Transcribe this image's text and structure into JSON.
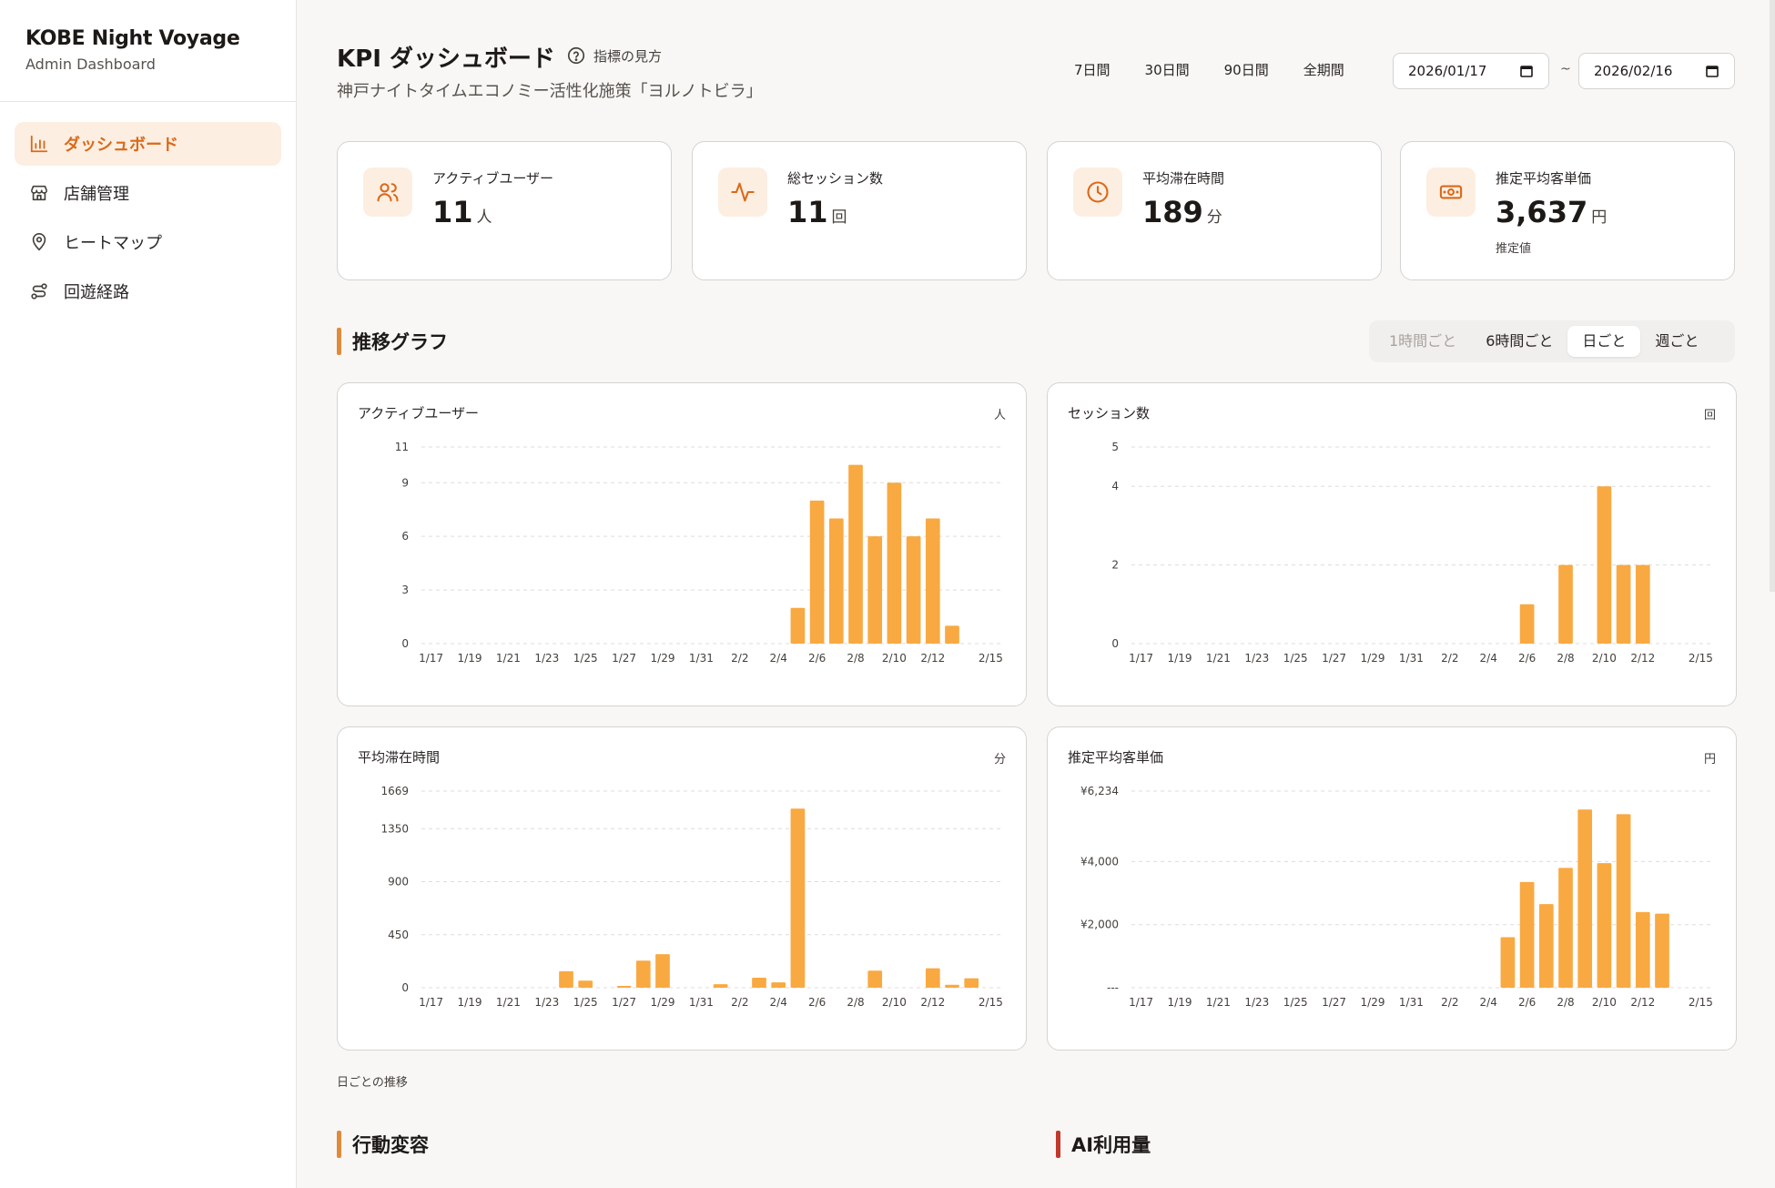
{
  "brand": {
    "title": "KOBE Night Voyage",
    "subtitle": "Admin Dashboard"
  },
  "nav": [
    {
      "label": "ダッシュボード",
      "icon": "bar-chart-icon",
      "active": true
    },
    {
      "label": "店舗管理",
      "icon": "store-icon",
      "active": false
    },
    {
      "label": "ヒートマップ",
      "icon": "map-pin-icon",
      "active": false
    },
    {
      "label": "回遊経路",
      "icon": "route-icon",
      "active": false
    }
  ],
  "header": {
    "title": "KPI ダッシュボード",
    "help_label": "指標の見方",
    "subtitle": "神戸ナイトタイムエコノミー活性化施策「ヨルノトビラ」",
    "range_buttons": [
      "7日間",
      "30日間",
      "90日間",
      "全期間"
    ],
    "date_from": "2026/01/17",
    "date_sep": "~",
    "date_to": "2026/02/16"
  },
  "kpis": [
    {
      "label": "アクティブユーザー",
      "value": "11",
      "unit": "人",
      "note": "",
      "icon": "users-icon"
    },
    {
      "label": "総セッション数",
      "value": "11",
      "unit": "回",
      "note": "",
      "icon": "activity-icon"
    },
    {
      "label": "平均滞在時間",
      "value": "189",
      "unit": "分",
      "note": "",
      "icon": "clock-icon"
    },
    {
      "label": "推定平均客単価",
      "value": "3,637",
      "unit": "円",
      "note": "推定値",
      "icon": "banknote-icon"
    }
  ],
  "trend": {
    "title": "推移グラフ",
    "granularity": [
      {
        "label": "1時間ごと",
        "state": "disabled"
      },
      {
        "label": "6時間ごと",
        "state": "normal"
      },
      {
        "label": "日ごと",
        "state": "selected"
      },
      {
        "label": "週ごと",
        "state": "normal"
      }
    ],
    "footnote": "日ごとの推移"
  },
  "sections": {
    "behavior": "行動変容",
    "ai_usage": "AI利用量"
  },
  "colors": {
    "accent": "#d96a1a",
    "bar": "#f9a941",
    "accent_light": "#fdeee2",
    "section_bar_1": "#e08b3a",
    "section_bar_2": "#c0392b"
  },
  "chart_data": [
    {
      "type": "bar",
      "title": "アクティブユーザー",
      "unit": "人",
      "x_labels": [
        "1/17",
        "1/19",
        "1/21",
        "1/23",
        "1/25",
        "1/27",
        "1/29",
        "1/31",
        "2/2",
        "2/4",
        "2/6",
        "2/8",
        "2/10",
        "2/12",
        "2/15"
      ],
      "x": [
        "1/17",
        "1/18",
        "1/19",
        "1/20",
        "1/21",
        "1/22",
        "1/23",
        "1/24",
        "1/25",
        "1/26",
        "1/27",
        "1/28",
        "1/29",
        "1/30",
        "1/31",
        "2/1",
        "2/2",
        "2/3",
        "2/4",
        "2/5",
        "2/6",
        "2/7",
        "2/8",
        "2/9",
        "2/10",
        "2/11",
        "2/12",
        "2/13",
        "2/14",
        "2/15"
      ],
      "values": [
        0,
        0,
        0,
        0,
        0,
        0,
        0,
        0,
        0,
        0,
        0,
        0,
        0,
        0,
        0,
        0,
        0,
        0,
        0,
        2,
        8,
        7,
        10,
        6,
        9,
        6,
        7,
        1,
        0,
        0
      ],
      "y_ticks": [
        "0",
        "3",
        "6",
        "9",
        "11"
      ],
      "ylim": [
        0,
        11
      ],
      "grid": true
    },
    {
      "type": "bar",
      "title": "セッション数",
      "unit": "回",
      "x_labels": [
        "1/17",
        "1/19",
        "1/21",
        "1/23",
        "1/25",
        "1/27",
        "1/29",
        "1/31",
        "2/2",
        "2/4",
        "2/6",
        "2/8",
        "2/10",
        "2/12",
        "2/15"
      ],
      "x": [
        "1/17",
        "1/18",
        "1/19",
        "1/20",
        "1/21",
        "1/22",
        "1/23",
        "1/24",
        "1/25",
        "1/26",
        "1/27",
        "1/28",
        "1/29",
        "1/30",
        "1/31",
        "2/1",
        "2/2",
        "2/3",
        "2/4",
        "2/5",
        "2/6",
        "2/7",
        "2/8",
        "2/9",
        "2/10",
        "2/11",
        "2/12",
        "2/13",
        "2/14",
        "2/15"
      ],
      "values": [
        0,
        0,
        0,
        0,
        0,
        0,
        0,
        0,
        0,
        0,
        0,
        0,
        0,
        0,
        0,
        0,
        0,
        0,
        0,
        0,
        1,
        0,
        2,
        0,
        4,
        2,
        2,
        0,
        0,
        0
      ],
      "y_ticks": [
        "0",
        "2",
        "4",
        "5"
      ],
      "ylim": [
        0,
        5
      ],
      "grid": true
    },
    {
      "type": "bar",
      "title": "平均滞在時間",
      "unit": "分",
      "x_labels": [
        "1/17",
        "1/19",
        "1/21",
        "1/23",
        "1/25",
        "1/27",
        "1/29",
        "1/31",
        "2/2",
        "2/4",
        "2/6",
        "2/8",
        "2/10",
        "2/12",
        "2/15"
      ],
      "x": [
        "1/17",
        "1/18",
        "1/19",
        "1/20",
        "1/21",
        "1/22",
        "1/23",
        "1/24",
        "1/25",
        "1/26",
        "1/27",
        "1/28",
        "1/29",
        "1/30",
        "1/31",
        "2/1",
        "2/2",
        "2/3",
        "2/4",
        "2/5",
        "2/6",
        "2/7",
        "2/8",
        "2/9",
        "2/10",
        "2/11",
        "2/12",
        "2/13",
        "2/14",
        "2/15"
      ],
      "values": [
        0,
        0,
        0,
        0,
        0,
        0,
        0,
        140,
        60,
        0,
        15,
        230,
        285,
        0,
        0,
        30,
        0,
        85,
        45,
        1520,
        0,
        0,
        0,
        145,
        0,
        0,
        165,
        25,
        80,
        0
      ],
      "y_ticks": [
        "0",
        "450",
        "900",
        "1350",
        "1669"
      ],
      "ylim": [
        0,
        1669
      ],
      "grid": true
    },
    {
      "type": "bar",
      "title": "推定平均客単価",
      "unit": "円",
      "x_labels": [
        "1/17",
        "1/19",
        "1/21",
        "1/23",
        "1/25",
        "1/27",
        "1/29",
        "1/31",
        "2/2",
        "2/4",
        "2/6",
        "2/8",
        "2/10",
        "2/12",
        "2/15"
      ],
      "x": [
        "1/17",
        "1/18",
        "1/19",
        "1/20",
        "1/21",
        "1/22",
        "1/23",
        "1/24",
        "1/25",
        "1/26",
        "1/27",
        "1/28",
        "1/29",
        "1/30",
        "1/31",
        "2/1",
        "2/2",
        "2/3",
        "2/4",
        "2/5",
        "2/6",
        "2/7",
        "2/8",
        "2/9",
        "2/10",
        "2/11",
        "2/12",
        "2/13",
        "2/14",
        "2/15"
      ],
      "values": [
        0,
        0,
        0,
        0,
        0,
        0,
        0,
        0,
        0,
        0,
        0,
        0,
        0,
        0,
        0,
        0,
        0,
        0,
        0,
        1600,
        3350,
        2650,
        3800,
        5650,
        3950,
        5500,
        2400,
        2350,
        0,
        0
      ],
      "y_ticks": [
        "---",
        "¥2,000",
        "¥4,000",
        "¥6,234"
      ],
      "y_tick_values": [
        0,
        2000,
        4000,
        6234
      ],
      "ylim": [
        0,
        6234
      ],
      "grid": true
    }
  ]
}
